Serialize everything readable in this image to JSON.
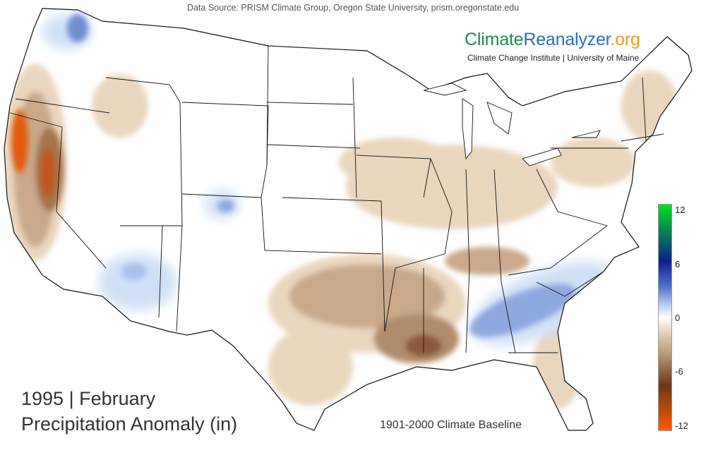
{
  "header": {
    "data_source": "Data Source: PRISM Climate Group, Oregon State University, prism.oregonstate.edu",
    "brand_part1": "Climate",
    "brand_part2": "Reanalyzer",
    "brand_part3": ".org",
    "affiliation": "Climate Change Institute | University of Maine"
  },
  "titles": {
    "period": "1995 | February",
    "variable": "Precipitation Anomaly (in)",
    "baseline": "1901-2000 Climate Baseline"
  },
  "legend": {
    "ticks": [
      "12",
      "6",
      "0",
      "-6",
      "-12"
    ],
    "tick_values": [
      12,
      6,
      0,
      -6,
      -12
    ],
    "range": [
      -12,
      12
    ],
    "colors": {
      "wettest": "#00e020",
      "wet_dark": "#0d1f8c",
      "wet_mid": "#4f6fc8",
      "wet_light": "#bcd4f4",
      "neutral": "#ffffff",
      "dry_light": "#ead6bd",
      "dry_mid": "#b08c6c",
      "dry_dark": "#6a3818",
      "driest": "#ff5a00"
    }
  },
  "colors": {
    "state_border": "#111111",
    "dry_light": "#ead6bd",
    "dry_mid": "#c9a98a",
    "dry_dark": "#8a5a3a",
    "dry_extreme": "#e35a10",
    "wet_light": "#cfe0f6",
    "wet_mid": "#8ea9e0",
    "wet_dark": "#4e6fc4"
  }
}
